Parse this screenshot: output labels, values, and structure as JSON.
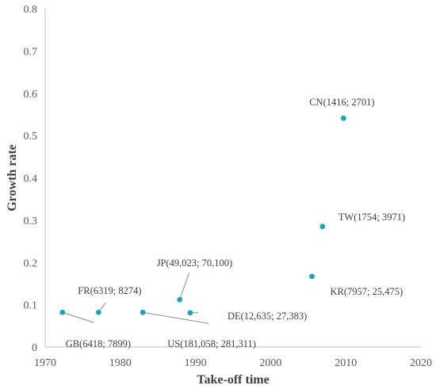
{
  "chart_data": {
    "type": "scatter",
    "xlabel": "Take-off time",
    "ylabel": "Growth rate",
    "xlim": [
      1970,
      2020
    ],
    "ylim": [
      0,
      0.8
    ],
    "xticks": [
      "1970",
      "1980",
      "1990",
      "2000",
      "2010",
      "2020"
    ],
    "yticks": [
      "0",
      "0.1",
      "0.2",
      "0.3",
      "0.4",
      "0.5",
      "0.6",
      "0.7",
      "0.8"
    ],
    "grid": false,
    "marker_color": "#17a2c8",
    "points": [
      {
        "x": 1972.3,
        "y": 0.082,
        "label": "GB(6418; 7899)"
      },
      {
        "x": 1977.1,
        "y": 0.082,
        "label": "FR(6319; 8274)"
      },
      {
        "x": 1983.0,
        "y": 0.082,
        "label": "US(181,058; 281,311)"
      },
      {
        "x": 1987.9,
        "y": 0.112,
        "label": "JP(49,023; 70,100)"
      },
      {
        "x": 1989.3,
        "y": 0.081,
        "label": "DE(12,635; 27,383)"
      },
      {
        "x": 2005.5,
        "y": 0.167,
        "label": "KR(7957; 25,475)"
      },
      {
        "x": 2006.9,
        "y": 0.285,
        "label": "TW(1754; 3971)"
      },
      {
        "x": 2009.7,
        "y": 0.541,
        "label": "CN(1416; 2701)"
      }
    ]
  }
}
